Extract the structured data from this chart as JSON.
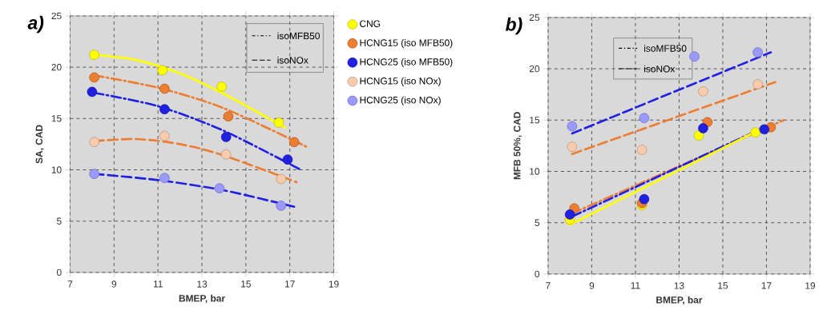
{
  "chart_data": [
    {
      "type": "scatter",
      "title": "a)",
      "xlabel": "BMEP, bar",
      "ylabel": "SA, CAD",
      "xlim": [
        7,
        19
      ],
      "ylim": [
        0,
        25
      ],
      "xticks": [
        7,
        9,
        11,
        13,
        15,
        17,
        19
      ],
      "yticks": [
        0,
        5,
        10,
        15,
        20,
        25
      ],
      "grid": true,
      "legend": "right",
      "annotations": [
        "isoMFB50",
        "isoNOx"
      ],
      "series": [
        {
          "type": "line",
          "marker": "none",
          "color": "#ffff00",
          "line_style": "solid",
          "x": [
            8.1,
            10,
            12,
            14,
            16.8
          ],
          "values": [
            21.2,
            20.7,
            19.4,
            17.4,
            14.1
          ]
        },
        {
          "type": "line",
          "marker": "none",
          "color": "#ed7d31",
          "line_style": "dashdot",
          "x": [
            8.1,
            11,
            14,
            17.8
          ],
          "values": [
            19.2,
            18.0,
            16.0,
            12.2
          ]
        },
        {
          "type": "line",
          "marker": "none",
          "color": "#2020e0",
          "line_style": "dashdot",
          "x": [
            8.1,
            11,
            14,
            17.5
          ],
          "values": [
            17.5,
            16.2,
            13.8,
            10.0
          ]
        },
        {
          "type": "line",
          "marker": "none",
          "color": "#ed7d31",
          "line_style": "dashed",
          "x": [
            8.1,
            10,
            12,
            14,
            17.3
          ],
          "values": [
            12.8,
            13.0,
            12.5,
            11.4,
            8.8
          ]
        },
        {
          "type": "line",
          "marker": "none",
          "color": "#2020e0",
          "line_style": "dashed",
          "x": [
            8.1,
            11,
            14,
            17.2
          ],
          "values": [
            9.6,
            9.0,
            8.0,
            6.4
          ]
        },
        {
          "name": "CNG",
          "marker": "circle",
          "color": "#ffff00",
          "x": [
            8.1,
            11.2,
            13.9,
            16.5
          ],
          "values": [
            21.2,
            19.7,
            18.1,
            14.6
          ]
        },
        {
          "name": "HCNG15 (iso MFB50)",
          "marker": "circle",
          "color": "#ed7d31",
          "x": [
            8.1,
            11.3,
            14.2,
            17.2
          ],
          "values": [
            19.0,
            17.9,
            15.2,
            12.7
          ]
        },
        {
          "name": "HCNG25 (iso MFB50)",
          "marker": "circle",
          "color": "#2020e0",
          "x": [
            8.0,
            11.3,
            14.1,
            16.9
          ],
          "values": [
            17.6,
            15.9,
            13.2,
            11.0
          ]
        },
        {
          "name": "HCNG15 (iso NOx)",
          "marker": "circle",
          "color": "#f8cbad",
          "x": [
            8.1,
            11.3,
            14.1,
            16.6
          ],
          "values": [
            12.7,
            13.3,
            11.5,
            9.1
          ]
        },
        {
          "name": "HCNG25 (iso NOx)",
          "marker": "circle",
          "color": "#9999ff",
          "x": [
            8.1,
            11.3,
            13.8,
            16.6
          ],
          "values": [
            9.6,
            9.2,
            8.2,
            6.5
          ]
        }
      ]
    },
    {
      "type": "scatter",
      "title": "b)",
      "xlabel": "BMEP, bar",
      "ylabel": "MFB 50%, CAD",
      "xlim": [
        7,
        19
      ],
      "ylim": [
        0,
        25
      ],
      "xticks": [
        7,
        9,
        11,
        13,
        15,
        17,
        19
      ],
      "yticks": [
        0,
        5,
        10,
        15,
        20,
        25
      ],
      "grid": true,
      "annotations": [
        "isoMFB50",
        "isoNOx"
      ],
      "series": [
        {
          "type": "line",
          "marker": "none",
          "color": "#2020e0",
          "line_style": "dashed",
          "x": [
            8.1,
            17.2
          ],
          "values": [
            13.7,
            21.6
          ]
        },
        {
          "type": "line",
          "marker": "none",
          "color": "#ed7d31",
          "line_style": "dashed",
          "x": [
            8.1,
            17.4
          ],
          "values": [
            11.7,
            18.7
          ]
        },
        {
          "type": "line",
          "marker": "none",
          "color": "#ed7d31",
          "line_style": "dashdot",
          "x": [
            8.1,
            17.8
          ],
          "values": [
            5.9,
            15.0
          ]
        },
        {
          "type": "line",
          "marker": "none",
          "color": "#2020e0",
          "line_style": "dashdot",
          "x": [
            8.1,
            17.0
          ],
          "values": [
            5.6,
            14.4
          ]
        },
        {
          "type": "line",
          "marker": "none",
          "color": "#ffff00",
          "line_style": "solid",
          "x": [
            8.0,
            16.9
          ],
          "values": [
            4.8,
            14.3
          ]
        },
        {
          "marker": "circle",
          "color": "#ffff00",
          "x": [
            8.0,
            11.3,
            13.9,
            16.5
          ],
          "values": [
            5.3,
            6.7,
            13.5,
            13.8
          ]
        },
        {
          "marker": "circle",
          "color": "#ed7d31",
          "x": [
            8.2,
            11.3,
            14.3,
            17.2
          ],
          "values": [
            6.4,
            6.9,
            14.8,
            14.3
          ]
        },
        {
          "marker": "circle",
          "color": "#2020e0",
          "x": [
            8.0,
            11.4,
            14.1,
            16.9
          ],
          "values": [
            5.8,
            7.3,
            14.2,
            14.1
          ]
        },
        {
          "marker": "circle",
          "color": "#f8cbad",
          "x": [
            8.1,
            11.3,
            14.1,
            16.6
          ],
          "values": [
            12.4,
            12.1,
            17.8,
            18.5
          ]
        },
        {
          "marker": "circle",
          "color": "#9999ff",
          "x": [
            8.1,
            11.4,
            13.7,
            16.6
          ],
          "values": [
            14.4,
            15.2,
            21.2,
            21.6
          ]
        }
      ]
    }
  ]
}
